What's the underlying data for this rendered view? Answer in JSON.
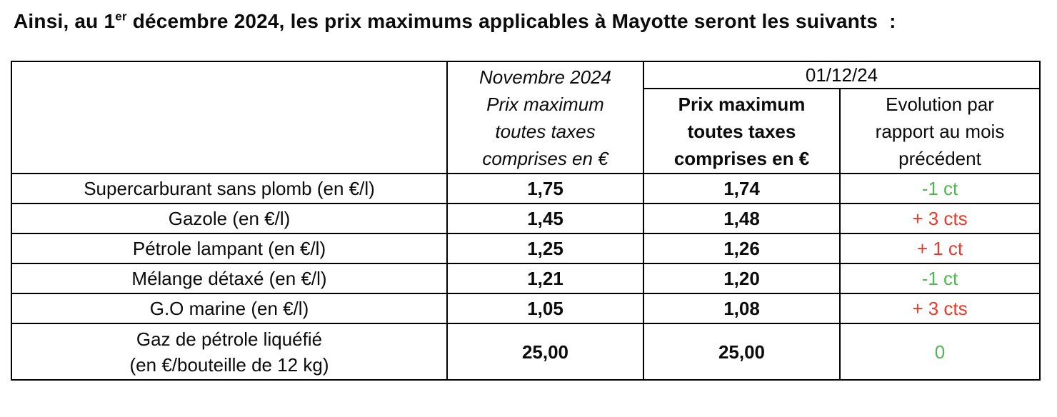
{
  "colors": {
    "trend-up": "#e93b2c",
    "trend-down": "#54b257",
    "ink": "#0b0b0b",
    "line": "#000000"
  },
  "intro": {
    "before_sup": "Ainsi, au 1",
    "sup": "er",
    "after_sup": " décembre 2024, les prix maximums applicables à Mayotte seront les suivants  :"
  },
  "table": {
    "header": {
      "empty": "",
      "november": "Novembre 2024\nPrix maximum\ntoutes taxes\ncomprises en €",
      "date": "01/12/24",
      "december_price": "Prix maximum\ntoutes taxes\ncomprises en €",
      "evolution": "Evolution par\nrapport au mois\nprécédent"
    },
    "rows": [
      {
        "product": "Supercarburant sans plomb (en €/l)",
        "november_price": "1,75",
        "december_price": "1,74",
        "evolution": "-1 ct",
        "trend": "down"
      },
      {
        "product": "Gazole (en €/l)",
        "november_price": "1,45",
        "december_price": "1,48",
        "evolution": "+ 3 cts",
        "trend": "up"
      },
      {
        "product": "Pétrole lampant (en €/l)",
        "november_price": "1,25",
        "december_price": "1,26",
        "evolution": "+ 1 ct",
        "trend": "up"
      },
      {
        "product": "Mélange détaxé (en €/l)",
        "november_price": "1,21",
        "december_price": "1,20",
        "evolution": "-1 ct",
        "trend": "down"
      },
      {
        "product": "G.O marine (en €/l)",
        "november_price": "1,05",
        "december_price": "1,08",
        "evolution": "+ 3 cts",
        "trend": "up"
      },
      {
        "product": "Gaz de pétrole liquéfié\n(en €/bouteille de 12 kg)",
        "november_price": "25,00",
        "december_price": "25,00",
        "evolution": "0",
        "trend": "zero"
      }
    ]
  }
}
